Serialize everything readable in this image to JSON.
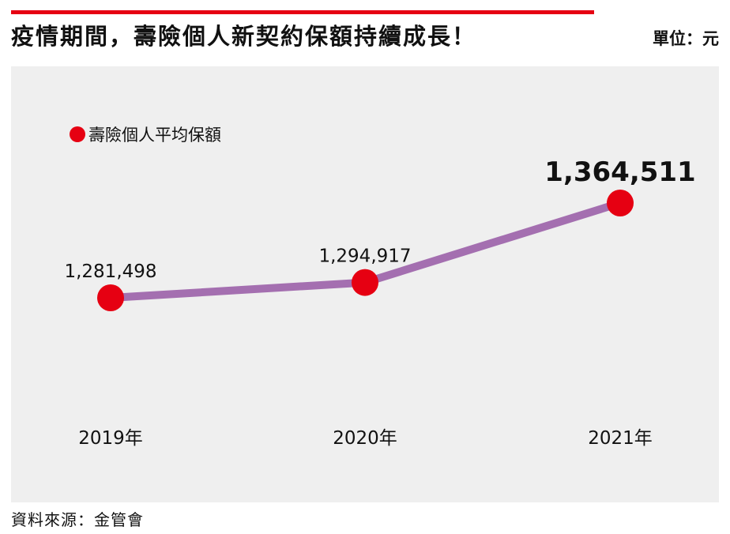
{
  "header": {
    "title": "疫情期間，壽險個人新契約保額持續成長！",
    "unit": "單位：元"
  },
  "footer": {
    "source": "資料來源：金管會"
  },
  "colors": {
    "accent_bar": "#e60012",
    "marker": "#e60012",
    "line": "#a46fb0",
    "panel_bg": "#efefef"
  },
  "chart_data": {
    "type": "line",
    "title": "疫情期間，壽險個人新契約保額持續成長！",
    "unit": "單位：元",
    "categories": [
      "2019年",
      "2020年",
      "2021年"
    ],
    "series": [
      {
        "name": "壽險個人平均保額",
        "values": [
          1281498,
          1294917,
          1364511
        ],
        "labels": [
          "1,281,498",
          "1,294,917",
          "1,364,511"
        ]
      }
    ],
    "highlight_last_label": true,
    "legend_position": "top-left",
    "grid": false
  }
}
